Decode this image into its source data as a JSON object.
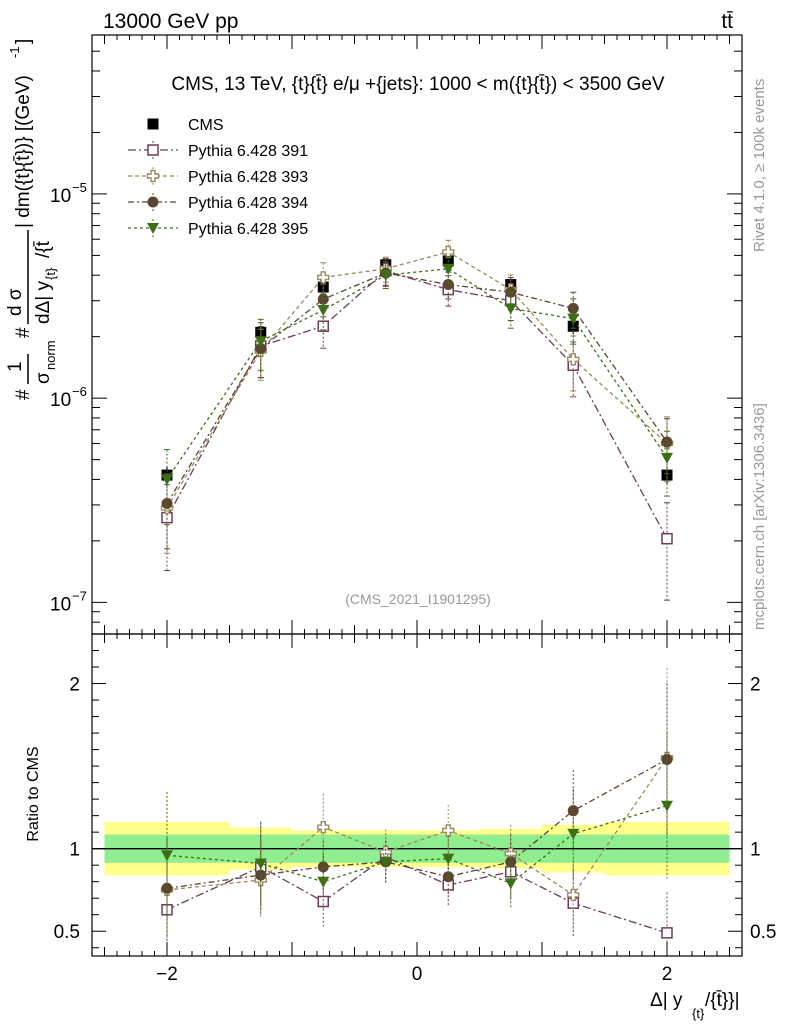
{
  "header": {
    "left_label": "13000 GeV pp",
    "right_label": "tt̄"
  },
  "side_labels": {
    "rivet": "Rivet 4.1.0, ≥ 100k events",
    "mcplots": "mcplots.cern.ch [arXiv:1306.3436]"
  },
  "chart_data": {
    "type": "scatter",
    "title": "CMS, 13 TeV, {t}{t̄} e/μ +{jets}: 1000 < m({t}{t̄}) < 3500 GeV",
    "watermark": "(CMS_2021_I1901295)",
    "xlabel": "Δ| y_{t}/{t̄}}|",
    "ylabel": "#1/σ_norm # dσ/dΔ| y_{t}/{t̄}| dm({t}{t̄})} [(GeV)^-1]",
    "ylabel_parts": {
      "hash1": "#",
      "one": "1",
      "sigma_norm": "σ",
      "sigma_norm_sub": "norm",
      "hash2": "#",
      "dsigma": "d σ",
      "denominator": "dΔ| y",
      "denominator_sub": "{t}",
      "denominator_tail": "/{t̄",
      "bracket": "| dm({t}{t̄})} [(GeV)",
      "bracket_sup": "-1",
      "bracket_end": "]"
    },
    "xlabel_parts": {
      "main": "Δ| y",
      "sub": "{t}",
      "tail": "/{t̄}}|"
    },
    "ratio_ylabel": "Ratio to CMS",
    "xlim": [
      -2.6,
      2.6
    ],
    "ylim": [
      7e-08,
      6e-05
    ],
    "yscale": "log",
    "ratio_ylim": [
      0.35,
      2.3
    ],
    "x_ticks": [
      -2,
      0,
      2
    ],
    "x_tick_labels": [
      "−2",
      "0",
      "2"
    ],
    "y_ticks": [
      1e-07,
      1e-06,
      1e-05
    ],
    "y_tick_labels": [
      {
        "base": "10",
        "exp": "−7"
      },
      {
        "base": "10",
        "exp": "−6"
      },
      {
        "base": "10",
        "exp": "−5"
      }
    ],
    "ratio_ticks": [
      0.5,
      1,
      2
    ],
    "ratio_tick_labels": [
      "0.5",
      "1",
      "2"
    ],
    "x": [
      -2.0,
      -1.25,
      -0.75,
      -0.25,
      0.25,
      0.75,
      1.25,
      2.0
    ],
    "bin_edges": [
      -2.5,
      -1.5,
      -1.0,
      -0.5,
      0.0,
      0.5,
      1.0,
      1.5,
      2.5
    ],
    "legend_position": "top-left",
    "data_series": {
      "name": "CMS",
      "color": "#000000",
      "marker": "square-filled",
      "values": [
        4.2e-07,
        2.1e-06,
        3.5e-06,
        4.5e-06,
        4.7e-06,
        3.6e-06,
        2.25e-06,
        4.2e-07
      ],
      "rel_err_inner": [
        0.045,
        0.045,
        0.045,
        0.045,
        0.045,
        0.045,
        0.045,
        0.045
      ],
      "rel_err_outer": [
        0.095,
        0.075,
        0.065,
        0.065,
        0.065,
        0.07,
        0.085,
        0.095
      ]
    },
    "series": [
      {
        "name": "Pythia 6.428 391",
        "color": "#6e3c5a",
        "marker": "square-open",
        "dash": "8,3,2,3",
        "values": [
          2.6e-07,
          1.8e-06,
          2.25e-06,
          4.2e-06,
          3.4e-06,
          3e-06,
          1.45e-06,
          2.05e-07
        ],
        "rel_err": [
          0.45,
          0.3,
          0.22,
          0.15,
          0.17,
          0.2,
          0.3,
          0.5
        ]
      },
      {
        "name": "Pythia 6.428 393",
        "color": "#9a8a5e",
        "marker": "cross-open",
        "dash": "4,3",
        "values": [
          2.9e-07,
          1.7e-06,
          3.9e-06,
          4.3e-06,
          5.2e-06,
          3.4e-06,
          1.55e-06,
          6e-07
        ],
        "rel_err": [
          0.4,
          0.28,
          0.18,
          0.14,
          0.14,
          0.18,
          0.3,
          0.35
        ]
      },
      {
        "name": "Pythia 6.428 394",
        "color": "#5c4630",
        "marker": "circle-filled",
        "dash": "6,3,2,3",
        "values": [
          3.05e-07,
          1.75e-06,
          3.05e-06,
          4.1e-06,
          3.6e-06,
          3.3e-06,
          2.75e-06,
          6.1e-07
        ],
        "rel_err": [
          0.4,
          0.28,
          0.18,
          0.14,
          0.15,
          0.18,
          0.2,
          0.3
        ]
      },
      {
        "name": "Pythia 6.428 395",
        "color": "#3d7016",
        "marker": "triangle-down-filled",
        "dash": "3,3",
        "values": [
          4e-07,
          1.9e-06,
          2.7e-06,
          4e-06,
          4.3e-06,
          2.75e-06,
          2.45e-06,
          5.1e-07
        ],
        "rel_err": [
          0.4,
          0.28,
          0.2,
          0.14,
          0.15,
          0.2,
          0.25,
          0.35
        ]
      }
    ],
    "ratio_series": [
      {
        "name": "Pythia 6.428 391",
        "values": [
          0.63,
          0.89,
          0.68,
          0.95,
          0.78,
          0.86,
          0.67,
          0.49
        ]
      },
      {
        "name": "Pythia 6.428 393",
        "values": [
          0.75,
          0.81,
          1.13,
          0.98,
          1.11,
          0.97,
          0.72,
          1.55
        ]
      },
      {
        "name": "Pythia 6.428 394",
        "values": [
          0.76,
          0.84,
          0.89,
          0.92,
          0.83,
          0.92,
          1.23,
          1.54
        ]
      },
      {
        "name": "Pythia 6.428 395",
        "values": [
          0.96,
          0.91,
          0.8,
          0.92,
          0.94,
          0.79,
          1.09,
          1.26
        ]
      }
    ]
  }
}
